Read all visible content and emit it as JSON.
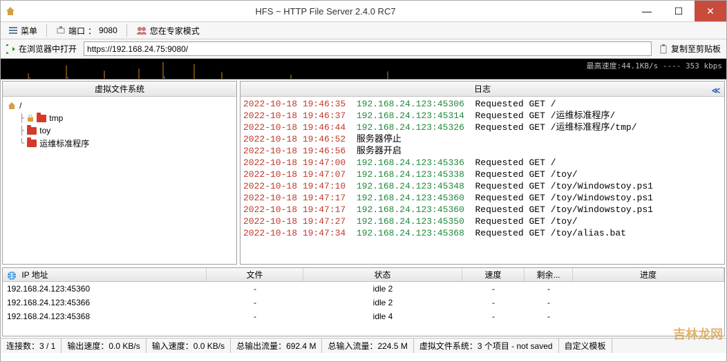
{
  "window": {
    "title": "HFS ~ HTTP File Server 2.4.0 RC7"
  },
  "menubar": {
    "menu": "菜单",
    "port_label": "端口",
    "port_value": "9080",
    "expert": "您在专家模式"
  },
  "addrbar": {
    "open": "在浏览器中打开",
    "url": "https://192.168.24.75:9080/",
    "copy": "复制至剪贴板"
  },
  "graph": {
    "label": "最高速度:44.1KB/s ---- 353 kbps"
  },
  "headers": {
    "vfs": "虚拟文件系统",
    "log": "日志"
  },
  "tree": {
    "root": "/",
    "items": [
      {
        "name": "tmp",
        "locked": true
      },
      {
        "name": "toy",
        "locked": false
      },
      {
        "name": "运维标准程序",
        "locked": false
      }
    ]
  },
  "log": [
    {
      "ts": "2022-10-18 19:46:35",
      "addr": "192.168.24.123:45306",
      "msg": "Requested GET /"
    },
    {
      "ts": "2022-10-18 19:46:37",
      "addr": "192.168.24.123:45314",
      "msg": "Requested GET /运维标准程序/"
    },
    {
      "ts": "2022-10-18 19:46:44",
      "addr": "192.168.24.123:45326",
      "msg": "Requested GET /运维标准程序/tmp/"
    },
    {
      "ts": "2022-10-18 19:46:52",
      "addr": "",
      "msg": "服务器停止"
    },
    {
      "ts": "2022-10-18 19:46:56",
      "addr": "",
      "msg": "服务器开启"
    },
    {
      "ts": "2022-10-18 19:47:00",
      "addr": "192.168.24.123:45336",
      "msg": "Requested GET /"
    },
    {
      "ts": "2022-10-18 19:47:07",
      "addr": "192.168.24.123:45338",
      "msg": "Requested GET /toy/"
    },
    {
      "ts": "2022-10-18 19:47:10",
      "addr": "192.168.24.123:45348",
      "msg": "Requested GET /toy/Windowstoy.ps1"
    },
    {
      "ts": "2022-10-18 19:47:17",
      "addr": "192.168.24.123:45360",
      "msg": "Requested GET /toy/Windowstoy.ps1"
    },
    {
      "ts": "2022-10-18 19:47:17",
      "addr": "192.168.24.123:45360",
      "msg": "Requested GET /toy/Windowstoy.ps1"
    },
    {
      "ts": "2022-10-18 19:47:27",
      "addr": "192.168.24.123:45350",
      "msg": "Requested GET /toy/"
    },
    {
      "ts": "2022-10-18 19:47:34",
      "addr": "192.168.24.123:45368",
      "msg": "Requested GET /toy/alias.bat"
    }
  ],
  "conns": {
    "cols": {
      "ip": "IP 地址",
      "file": "文件",
      "status": "状态",
      "speed": "速度",
      "left": "剩余...",
      "prog": "进度"
    },
    "rows": [
      {
        "ip": "192.168.24.123:45360",
        "file": "-",
        "status": "idle 2",
        "speed": "-",
        "left": "-",
        "prog": ""
      },
      {
        "ip": "192.168.24.123:45366",
        "file": "-",
        "status": "idle 2",
        "speed": "-",
        "left": "-",
        "prog": ""
      },
      {
        "ip": "192.168.24.123:45368",
        "file": "-",
        "status": "idle 4",
        "speed": "-",
        "left": "-",
        "prog": ""
      }
    ]
  },
  "status": {
    "conn": "连接数：3 / 1",
    "outspeed": "输出速度：0.0 KB/s",
    "inspeed": "输入速度：0.0 KB/s",
    "out": "总输出流量：692.4 M",
    "in": "总输入流量：224.5 M",
    "vfs": "虚拟文件系统：3 个项目 - not saved",
    "tpl": "自定义模板"
  },
  "watermark": "吉林龙网",
  "colors": {
    "ts": "#c0392b",
    "addr": "#1e8a3b",
    "msg": "#000000",
    "graph_bg": "#000000",
    "close_btn": "#c94b3b"
  }
}
